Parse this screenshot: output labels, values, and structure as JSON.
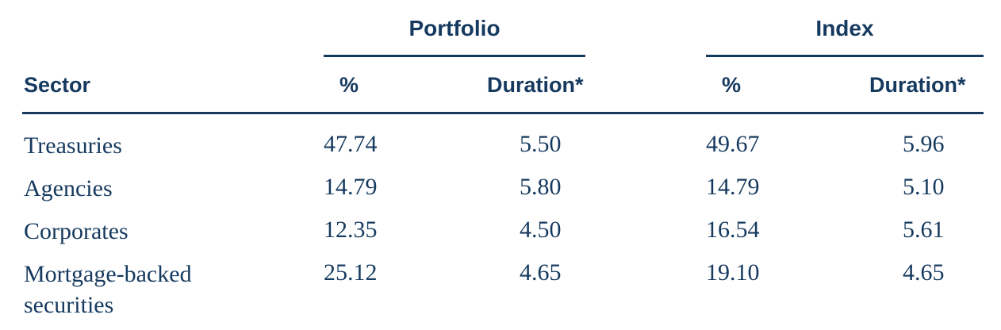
{
  "header": {
    "groups": [
      "Portfolio",
      "Index"
    ],
    "columns": [
      "Sector",
      "%",
      "Duration*",
      "%",
      "Duration*"
    ]
  },
  "rows": [
    {
      "sector": "Treasuries",
      "portfolio_pct": "47.74",
      "portfolio_duration": "5.50",
      "index_pct": "49.67",
      "index_duration": "5.96"
    },
    {
      "sector": "Agencies",
      "portfolio_pct": "14.79",
      "portfolio_duration": "5.80",
      "index_pct": "14.79",
      "index_duration": "5.10"
    },
    {
      "sector": "Corporates",
      "portfolio_pct": "12.35",
      "portfolio_duration": "4.50",
      "index_pct": "16.54",
      "index_duration": "5.61"
    },
    {
      "sector": "Mortgage-backed securities",
      "portfolio_pct": "25.12",
      "portfolio_duration": "4.65",
      "index_pct": "19.10",
      "index_duration": "4.65"
    }
  ]
}
